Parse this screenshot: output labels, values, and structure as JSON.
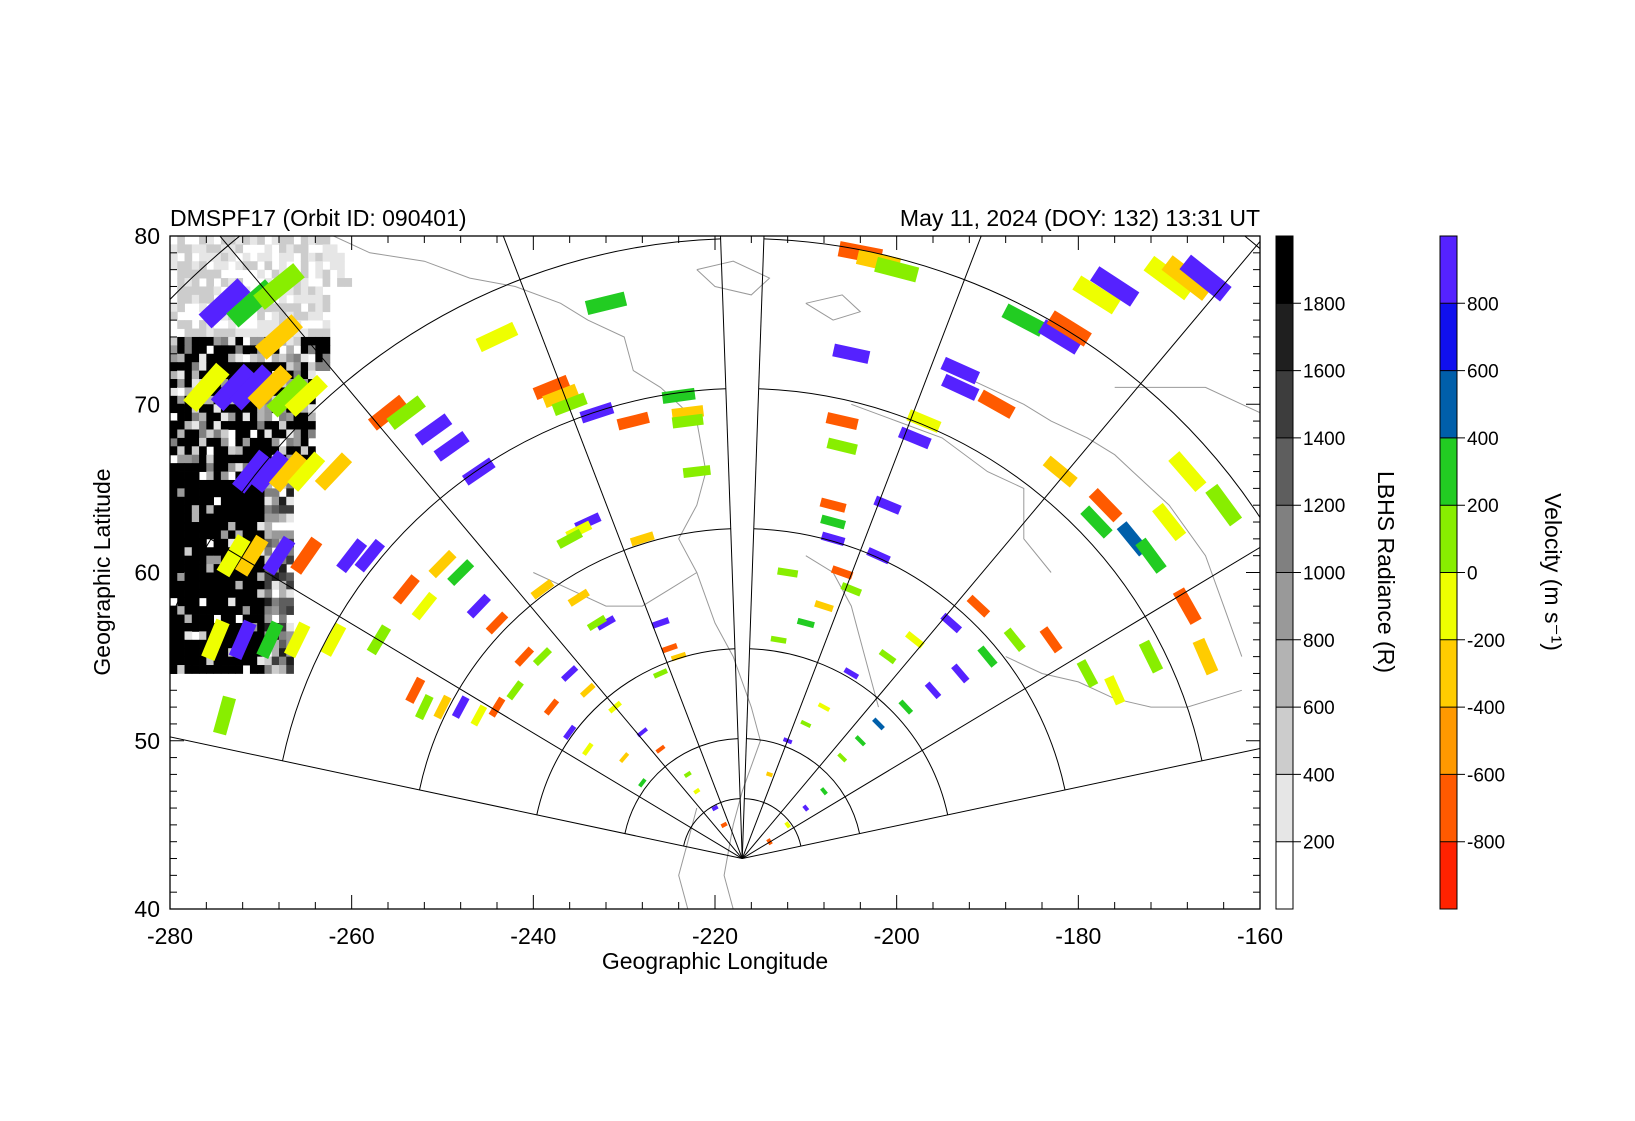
{
  "header": {
    "left": "DMSPF17 (Orbit ID: 090401)",
    "right": "May 11, 2024 (DOY: 132) 13:31 UT"
  },
  "chart_data": {
    "type": "heatmap",
    "title_left": "DMSPF17 (Orbit ID: 090401)",
    "title_right": "May 11, 2024 (DOY: 132) 13:31 UT",
    "xlabel": "Geographic Longitude",
    "ylabel": "Geographic Latitude",
    "xlim": [
      -280,
      -160
    ],
    "ylim": [
      40,
      80
    ],
    "x_ticks": [
      "-280",
      "-260",
      "-240",
      "-220",
      "-200",
      "-180",
      "-160"
    ],
    "y_ticks": [
      "40",
      "50",
      "60",
      "70",
      "80"
    ],
    "grid": false,
    "radiance_colorbar": {
      "label": "LBHS Radiance (R)",
      "range": [
        0,
        2000
      ],
      "tick_labels": [
        "200",
        "400",
        "600",
        "800",
        "1000",
        "1200",
        "1400",
        "1600",
        "1800"
      ],
      "colors": [
        "#ffffff",
        "#e6e6e6",
        "#cccccc",
        "#b3b3b3",
        "#999999",
        "#808080",
        "#5e5e5e",
        "#3d3d3d",
        "#1f1f1f",
        "#000000"
      ]
    },
    "velocity_colorbar": {
      "label": "Velocity (m s⁻¹)",
      "range": [
        -1000,
        1000
      ],
      "tick_labels": [
        "-800",
        "-600",
        "-400",
        "-200",
        "0",
        "200",
        "400",
        "600",
        "800"
      ],
      "colors": [
        "#ff2200",
        "#ff5a00",
        "#ff9900",
        "#ffcc00",
        "#eeff00",
        "#88ee00",
        "#22cc22",
        "#005faa",
        "#1010ee",
        "#5522ff"
      ]
    },
    "radar_fans": [
      {
        "apex_lon": -217,
        "apex_lat": 43,
        "bearing_min": -78,
        "bearing_max": -2
      },
      {
        "apex_lon": -217,
        "apex_lat": 43,
        "bearing_min": 2,
        "bearing_max": 78
      }
    ],
    "velocity_cells": [
      {
        "lon": -274,
        "lat": 76,
        "value": 900
      },
      {
        "lon": -271,
        "lat": 76,
        "value": 300
      },
      {
        "lon": -268,
        "lat": 77,
        "value": 150
      },
      {
        "lon": -268,
        "lat": 74,
        "value": -300
      },
      {
        "lon": -276,
        "lat": 71,
        "value": -100
      },
      {
        "lon": -273,
        "lat": 71,
        "value": 900
      },
      {
        "lon": -271,
        "lat": 71,
        "value": 800
      },
      {
        "lon": -269,
        "lat": 71,
        "value": -300
      },
      {
        "lon": -267,
        "lat": 70.5,
        "value": 150
      },
      {
        "lon": -265,
        "lat": 70.5,
        "value": -100
      },
      {
        "lon": -271,
        "lat": 66,
        "value": 900
      },
      {
        "lon": -269,
        "lat": 66,
        "value": 800
      },
      {
        "lon": -267,
        "lat": 66,
        "value": -300
      },
      {
        "lon": -265,
        "lat": 66,
        "value": -100
      },
      {
        "lon": -262,
        "lat": 66,
        "value": -300
      },
      {
        "lon": -273,
        "lat": 61,
        "value": -100
      },
      {
        "lon": -271,
        "lat": 61,
        "value": -300
      },
      {
        "lon": -268,
        "lat": 61,
        "value": 900
      },
      {
        "lon": -265,
        "lat": 61,
        "value": -800
      },
      {
        "lon": -260,
        "lat": 61,
        "value": 900
      },
      {
        "lon": -258,
        "lat": 61,
        "value": 800
      },
      {
        "lon": -275,
        "lat": 56,
        "value": -100
      },
      {
        "lon": -272,
        "lat": 56,
        "value": 800
      },
      {
        "lon": -269,
        "lat": 56,
        "value": 300
      },
      {
        "lon": -266,
        "lat": 56,
        "value": -100
      },
      {
        "lon": -262,
        "lat": 56,
        "value": -100
      },
      {
        "lon": -257,
        "lat": 56,
        "value": 150
      },
      {
        "lon": -274,
        "lat": 51.5,
        "value": 150
      },
      {
        "lon": -256,
        "lat": 69.5,
        "value": -800
      },
      {
        "lon": -254,
        "lat": 69.5,
        "value": 150
      },
      {
        "lon": -251,
        "lat": 68.5,
        "value": 900
      },
      {
        "lon": -249,
        "lat": 67.5,
        "value": 800
      },
      {
        "lon": -246,
        "lat": 66,
        "value": 900
      },
      {
        "lon": -244,
        "lat": 74,
        "value": -100
      },
      {
        "lon": -238,
        "lat": 71,
        "value": -800
      },
      {
        "lon": -237,
        "lat": 70.5,
        "value": -400
      },
      {
        "lon": -236,
        "lat": 70,
        "value": 150
      },
      {
        "lon": -232,
        "lat": 76,
        "value": 300
      },
      {
        "lon": -233,
        "lat": 69.5,
        "value": 900
      },
      {
        "lon": -229,
        "lat": 69,
        "value": -800
      },
      {
        "lon": -224,
        "lat": 70.5,
        "value": 300
      },
      {
        "lon": -223,
        "lat": 69.5,
        "value": -300
      },
      {
        "lon": -223,
        "lat": 69,
        "value": 150
      },
      {
        "lon": -222,
        "lat": 66,
        "value": 150
      },
      {
        "lon": -234,
        "lat": 63,
        "value": 900
      },
      {
        "lon": -235,
        "lat": 62.5,
        "value": -100
      },
      {
        "lon": -236,
        "lat": 62,
        "value": 150
      },
      {
        "lon": -228,
        "lat": 62,
        "value": -300
      },
      {
        "lon": -239,
        "lat": 59,
        "value": -400
      },
      {
        "lon": -235,
        "lat": 58.5,
        "value": -300
      },
      {
        "lon": -232,
        "lat": 57,
        "value": 900
      },
      {
        "lon": -233,
        "lat": 57,
        "value": 150
      },
      {
        "lon": -226,
        "lat": 57,
        "value": 900
      },
      {
        "lon": -225,
        "lat": 55.5,
        "value": -800
      },
      {
        "lon": -224,
        "lat": 55,
        "value": -300
      },
      {
        "lon": -226,
        "lat": 54,
        "value": 150
      },
      {
        "lon": -250,
        "lat": 60.5,
        "value": -300
      },
      {
        "lon": -248,
        "lat": 60,
        "value": 300
      },
      {
        "lon": -254,
        "lat": 59,
        "value": -800
      },
      {
        "lon": -252,
        "lat": 58,
        "value": -100
      },
      {
        "lon": -246,
        "lat": 58,
        "value": 900
      },
      {
        "lon": -244,
        "lat": 57,
        "value": -800
      },
      {
        "lon": -239,
        "lat": 55,
        "value": 150
      },
      {
        "lon": -241,
        "lat": 55,
        "value": -800
      },
      {
        "lon": -236,
        "lat": 54,
        "value": 900
      },
      {
        "lon": -234,
        "lat": 53,
        "value": -400
      },
      {
        "lon": -231,
        "lat": 52,
        "value": -100
      },
      {
        "lon": -228,
        "lat": 50.5,
        "value": 900
      },
      {
        "lon": -226,
        "lat": 49.5,
        "value": -800
      },
      {
        "lon": -253,
        "lat": 53,
        "value": -800
      },
      {
        "lon": -252,
        "lat": 52,
        "value": 150
      },
      {
        "lon": -250,
        "lat": 52,
        "value": -300
      },
      {
        "lon": -248,
        "lat": 52,
        "value": 900
      },
      {
        "lon": -246,
        "lat": 51.5,
        "value": -100
      },
      {
        "lon": -244,
        "lat": 52,
        "value": -800
      },
      {
        "lon": -242,
        "lat": 53,
        "value": 150
      },
      {
        "lon": -238,
        "lat": 52,
        "value": -800
      },
      {
        "lon": -236,
        "lat": 50.5,
        "value": 900
      },
      {
        "lon": -234,
        "lat": 49.5,
        "value": -100
      },
      {
        "lon": -230,
        "lat": 49,
        "value": -400
      },
      {
        "lon": -228,
        "lat": 47.5,
        "value": 300
      },
      {
        "lon": -223,
        "lat": 48,
        "value": 150
      },
      {
        "lon": -222,
        "lat": 47,
        "value": -100
      },
      {
        "lon": -220,
        "lat": 46,
        "value": 900
      },
      {
        "lon": -219,
        "lat": 45,
        "value": -800
      },
      {
        "lon": -204,
        "lat": 79,
        "value": -800
      },
      {
        "lon": -202,
        "lat": 78.5,
        "value": -400
      },
      {
        "lon": -200,
        "lat": 78,
        "value": 150
      },
      {
        "lon": -205,
        "lat": 73,
        "value": 900
      },
      {
        "lon": -206,
        "lat": 69,
        "value": -800
      },
      {
        "lon": -206,
        "lat": 67.5,
        "value": 150
      },
      {
        "lon": -207,
        "lat": 64,
        "value": -800
      },
      {
        "lon": -207,
        "lat": 63,
        "value": 300
      },
      {
        "lon": -207,
        "lat": 62,
        "value": 900
      },
      {
        "lon": -201,
        "lat": 64,
        "value": 900
      },
      {
        "lon": -202,
        "lat": 61,
        "value": 900
      },
      {
        "lon": -197,
        "lat": 69,
        "value": -100
      },
      {
        "lon": -198,
        "lat": 68,
        "value": 900
      },
      {
        "lon": -193,
        "lat": 71,
        "value": 900
      },
      {
        "lon": -189,
        "lat": 70,
        "value": -800
      },
      {
        "lon": -193,
        "lat": 72,
        "value": 900
      },
      {
        "lon": -186,
        "lat": 75,
        "value": 300
      },
      {
        "lon": -182,
        "lat": 74,
        "value": 900
      },
      {
        "lon": -181,
        "lat": 74.5,
        "value": -800
      },
      {
        "lon": -178,
        "lat": 76.5,
        "value": -100
      },
      {
        "lon": -176,
        "lat": 77,
        "value": 900
      },
      {
        "lon": -170,
        "lat": 77.5,
        "value": -100
      },
      {
        "lon": -168,
        "lat": 77.5,
        "value": -300
      },
      {
        "lon": -166,
        "lat": 77.5,
        "value": 900
      },
      {
        "lon": -182,
        "lat": 66,
        "value": -300
      },
      {
        "lon": -178,
        "lat": 63,
        "value": 300
      },
      {
        "lon": -177,
        "lat": 64,
        "value": -800
      },
      {
        "lon": -174,
        "lat": 62,
        "value": 500
      },
      {
        "lon": -172,
        "lat": 61,
        "value": 300
      },
      {
        "lon": -170,
        "lat": 63,
        "value": -100
      },
      {
        "lon": -168,
        "lat": 66,
        "value": -100
      },
      {
        "lon": -164,
        "lat": 64,
        "value": 150
      },
      {
        "lon": -168,
        "lat": 58,
        "value": -800
      },
      {
        "lon": -166,
        "lat": 55,
        "value": -300
      },
      {
        "lon": -172,
        "lat": 55,
        "value": 150
      },
      {
        "lon": -176,
        "lat": 53,
        "value": -100
      },
      {
        "lon": -179,
        "lat": 54,
        "value": 150
      },
      {
        "lon": -183,
        "lat": 56,
        "value": -800
      },
      {
        "lon": -187,
        "lat": 56,
        "value": 150
      },
      {
        "lon": -190,
        "lat": 55,
        "value": 300
      },
      {
        "lon": -193,
        "lat": 54,
        "value": 900
      },
      {
        "lon": -196,
        "lat": 53,
        "value": 800
      },
      {
        "lon": -199,
        "lat": 52,
        "value": 300
      },
      {
        "lon": -202,
        "lat": 51,
        "value": 500
      },
      {
        "lon": -204,
        "lat": 50,
        "value": 300
      },
      {
        "lon": -206,
        "lat": 49,
        "value": 150
      },
      {
        "lon": -208,
        "lat": 47,
        "value": 300
      },
      {
        "lon": -210,
        "lat": 46,
        "value": 900
      },
      {
        "lon": -212,
        "lat": 45,
        "value": -100
      },
      {
        "lon": -214,
        "lat": 44,
        "value": -800
      },
      {
        "lon": -191,
        "lat": 58,
        "value": -800
      },
      {
        "lon": -194,
        "lat": 57,
        "value": 900
      },
      {
        "lon": -198,
        "lat": 56,
        "value": -100
      },
      {
        "lon": -201,
        "lat": 55,
        "value": 150
      },
      {
        "lon": -205,
        "lat": 54,
        "value": 900
      },
      {
        "lon": -208,
        "lat": 52,
        "value": -100
      },
      {
        "lon": -210,
        "lat": 51,
        "value": 150
      },
      {
        "lon": -212,
        "lat": 50,
        "value": 900
      },
      {
        "lon": -214,
        "lat": 48,
        "value": -300
      },
      {
        "lon": -213,
        "lat": 56,
        "value": 150
      },
      {
        "lon": -210,
        "lat": 57,
        "value": 300
      },
      {
        "lon": -208,
        "lat": 58,
        "value": -300
      },
      {
        "lon": -205,
        "lat": 59,
        "value": 150
      },
      {
        "lon": -212,
        "lat": 60,
        "value": 150
      },
      {
        "lon": -206,
        "lat": 60,
        "value": -800
      }
    ],
    "coastlines": [
      {
        "name": "asia-north-coast",
        "points": [
          [
            -262,
            80
          ],
          [
            -258,
            79
          ],
          [
            -252,
            78.5
          ],
          [
            -247,
            77.5
          ],
          [
            -242,
            77
          ],
          [
            -237,
            76
          ],
          [
            -234,
            75
          ],
          [
            -230,
            74
          ],
          [
            -229,
            72
          ],
          [
            -226,
            71
          ],
          [
            -225,
            70.5
          ]
        ]
      },
      {
        "name": "asia-east-coast",
        "points": [
          [
            -225,
            70.5
          ],
          [
            -222,
            69
          ],
          [
            -221,
            66
          ],
          [
            -222,
            64
          ],
          [
            -224,
            62
          ],
          [
            -222,
            60
          ],
          [
            -220,
            57
          ],
          [
            -218,
            55
          ],
          [
            -216,
            52
          ],
          [
            -215,
            50
          ],
          [
            -217,
            47
          ],
          [
            -218,
            45
          ],
          [
            -219,
            42
          ],
          [
            -218,
            40
          ]
        ]
      },
      {
        "name": "japan-coast",
        "points": [
          [
            -222,
            46
          ],
          [
            -223,
            44
          ],
          [
            -224,
            42
          ],
          [
            -223,
            40
          ]
        ]
      },
      {
        "name": "okhotsk-coast",
        "points": [
          [
            -240,
            60
          ],
          [
            -236,
            59
          ],
          [
            -232,
            58
          ],
          [
            -228,
            58
          ],
          [
            -225,
            59
          ],
          [
            -222,
            60
          ]
        ]
      },
      {
        "name": "kamchatka-coast",
        "points": [
          [
            -210,
            61
          ],
          [
            -207,
            60
          ],
          [
            -205,
            58
          ],
          [
            -204,
            56
          ],
          [
            -203,
            54
          ],
          [
            -202,
            52
          ]
        ]
      },
      {
        "name": "chukotka-coast",
        "points": [
          [
            -205,
            70
          ],
          [
            -200,
            69
          ],
          [
            -195,
            68
          ],
          [
            -190,
            66
          ],
          [
            -186,
            65
          ],
          [
            -186,
            62
          ],
          [
            -183,
            60
          ]
        ]
      },
      {
        "name": "alaska-coast",
        "points": [
          [
            -194,
            72
          ],
          [
            -190,
            71
          ],
          [
            -186,
            70
          ],
          [
            -183,
            69
          ],
          [
            -179,
            68
          ],
          [
            -176,
            67
          ],
          [
            -174,
            66
          ],
          [
            -170,
            64
          ],
          [
            -166,
            61
          ],
          [
            -164,
            58
          ],
          [
            -162,
            55
          ]
        ]
      },
      {
        "name": "alaska-north-coast",
        "points": [
          [
            -176,
            71
          ],
          [
            -172,
            71
          ],
          [
            -166,
            71
          ],
          [
            -162,
            70
          ],
          [
            -160,
            69.5
          ]
        ]
      },
      {
        "name": "aleutian-chain",
        "points": [
          [
            -188,
            55
          ],
          [
            -184,
            54
          ],
          [
            -180,
            53.5
          ],
          [
            -176,
            52.5
          ],
          [
            -172,
            52
          ],
          [
            -168,
            52
          ],
          [
            -165,
            52.5
          ],
          [
            -162,
            53
          ]
        ]
      },
      {
        "name": "arctic-islands",
        "points": [
          [
            -222,
            78
          ],
          [
            -220,
            77
          ],
          [
            -216,
            76.5
          ],
          [
            -214,
            77.5
          ],
          [
            -218,
            78.5
          ],
          [
            -222,
            78
          ]
        ]
      },
      {
        "name": "siberian-islands",
        "points": [
          [
            -210,
            76
          ],
          [
            -207,
            75
          ],
          [
            -204,
            75.5
          ],
          [
            -206,
            76.5
          ],
          [
            -210,
            76
          ]
        ]
      }
    ]
  }
}
